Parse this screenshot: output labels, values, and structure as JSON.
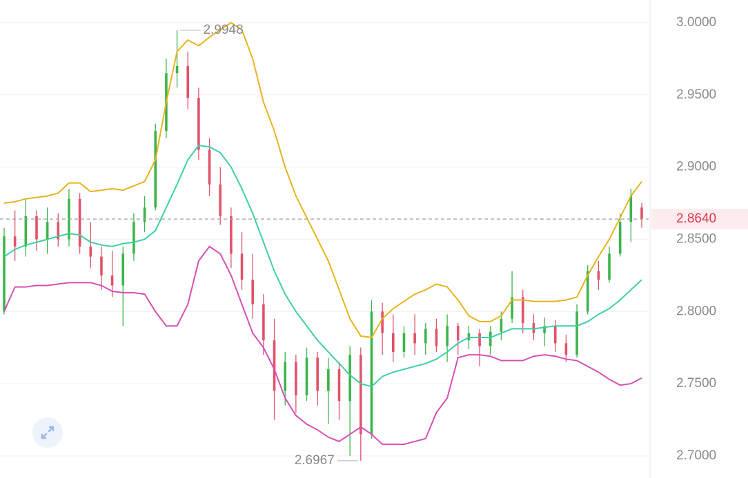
{
  "chart_data": {
    "type": "candlestick",
    "up_color": "#3cb54a",
    "down_color": "#e0536a",
    "open": [
      2.8,
      2.852,
      2.845,
      2.866,
      2.85,
      2.862,
      2.85,
      2.878,
      2.845,
      2.838,
      2.825,
      2.818,
      2.84,
      2.862,
      2.872,
      2.925,
      2.965,
      2.97,
      2.948,
      2.912,
      2.888,
      2.866,
      2.84,
      2.822,
      2.805,
      2.78,
      2.745,
      2.765,
      2.742,
      2.768,
      2.745,
      2.76,
      2.738,
      2.77,
      2.715,
      2.8,
      2.785,
      2.772,
      2.785,
      2.778,
      2.788,
      2.776,
      2.79,
      2.78,
      2.785,
      2.776,
      2.786,
      2.795,
      2.81,
      2.792,
      2.785,
      2.79,
      2.778,
      2.77,
      2.8,
      2.828,
      2.822,
      2.84,
      2.862,
      2.872
    ],
    "high": [
      2.858,
      2.87,
      2.878,
      2.87,
      2.872,
      2.868,
      2.885,
      2.882,
      2.862,
      2.845,
      2.842,
      2.845,
      2.868,
      2.88,
      2.93,
      2.975,
      2.9948,
      2.98,
      2.955,
      2.92,
      2.9,
      2.872,
      2.855,
      2.84,
      2.812,
      2.795,
      2.772,
      2.77,
      2.775,
      2.772,
      2.768,
      2.765,
      2.776,
      2.775,
      2.808,
      2.806,
      2.798,
      2.79,
      2.798,
      2.792,
      2.795,
      2.798,
      2.792,
      2.79,
      2.788,
      2.79,
      2.8,
      2.828,
      2.815,
      2.798,
      2.796,
      2.794,
      2.784,
      2.805,
      2.832,
      2.835,
      2.845,
      2.868,
      2.885,
      2.875
    ],
    "low": [
      2.798,
      2.835,
      2.838,
      2.842,
      2.84,
      2.845,
      2.845,
      2.84,
      2.83,
      2.815,
      2.81,
      2.79,
      2.835,
      2.855,
      2.87,
      2.92,
      2.955,
      2.94,
      2.905,
      2.88,
      2.86,
      2.83,
      2.815,
      2.795,
      2.77,
      2.725,
      2.735,
      2.73,
      2.738,
      2.735,
      2.722,
      2.725,
      2.7,
      2.6967,
      2.712,
      2.77,
      2.765,
      2.768,
      2.77,
      2.77,
      2.772,
      2.765,
      2.77,
      2.774,
      2.762,
      2.77,
      2.78,
      2.792,
      2.785,
      2.78,
      2.776,
      2.772,
      2.765,
      2.768,
      2.798,
      2.815,
      2.82,
      2.838,
      2.848,
      2.858
    ],
    "close": [
      2.852,
      2.845,
      2.866,
      2.85,
      2.862,
      2.85,
      2.878,
      2.845,
      2.838,
      2.825,
      2.818,
      2.84,
      2.862,
      2.872,
      2.925,
      2.965,
      2.97,
      2.948,
      2.912,
      2.888,
      2.866,
      2.84,
      2.822,
      2.805,
      2.78,
      2.745,
      2.765,
      2.742,
      2.768,
      2.745,
      2.76,
      2.738,
      2.77,
      2.715,
      2.8,
      2.785,
      2.772,
      2.785,
      2.778,
      2.788,
      2.776,
      2.79,
      2.78,
      2.785,
      2.776,
      2.786,
      2.795,
      2.81,
      2.792,
      2.785,
      2.79,
      2.778,
      2.77,
      2.8,
      2.828,
      2.822,
      2.84,
      2.862,
      2.88,
      2.864
    ],
    "series": [
      {
        "color": "#e9b31c",
        "values": [
          2.875,
          2.876,
          2.878,
          2.879,
          2.88,
          2.882,
          2.889,
          2.889,
          2.883,
          2.884,
          2.885,
          2.884,
          2.887,
          2.89,
          2.905,
          2.945,
          2.98,
          2.988,
          2.984,
          2.99,
          2.995,
          3.0,
          2.995,
          2.975,
          2.945,
          2.925,
          2.9,
          2.88,
          2.865,
          2.85,
          2.835,
          2.815,
          2.795,
          2.783,
          2.782,
          2.795,
          2.802,
          2.807,
          2.812,
          2.815,
          2.819,
          2.817,
          2.808,
          2.797,
          2.793,
          2.793,
          2.797,
          2.808,
          2.808,
          2.807,
          2.807,
          2.807,
          2.808,
          2.81,
          2.825,
          2.838,
          2.85,
          2.865,
          2.88,
          2.89
        ]
      },
      {
        "color": "#3ccfa6",
        "values": [
          2.838,
          2.843,
          2.846,
          2.848,
          2.85,
          2.852,
          2.854,
          2.853,
          2.848,
          2.846,
          2.845,
          2.847,
          2.848,
          2.85,
          2.856,
          2.872,
          2.888,
          2.905,
          2.915,
          2.914,
          2.91,
          2.9,
          2.885,
          2.868,
          2.848,
          2.828,
          2.812,
          2.8,
          2.79,
          2.78,
          2.772,
          2.764,
          2.756,
          2.75,
          2.748,
          2.755,
          2.758,
          2.76,
          2.762,
          2.764,
          2.767,
          2.772,
          2.778,
          2.782,
          2.782,
          2.782,
          2.785,
          2.788,
          2.788,
          2.788,
          2.789,
          2.79,
          2.79,
          2.79,
          2.793,
          2.798,
          2.802,
          2.808,
          2.815,
          2.822
        ]
      },
      {
        "color": "#d64fb5",
        "values": [
          2.8,
          2.817,
          2.817,
          2.818,
          2.818,
          2.819,
          2.82,
          2.82,
          2.82,
          2.818,
          2.814,
          2.813,
          2.813,
          2.812,
          2.8,
          2.79,
          2.79,
          2.805,
          2.835,
          2.845,
          2.84,
          2.825,
          2.805,
          2.785,
          2.775,
          2.76,
          2.74,
          2.728,
          2.722,
          2.718,
          2.713,
          2.71,
          2.715,
          2.72,
          2.715,
          2.708,
          2.708,
          2.708,
          2.71,
          2.712,
          2.73,
          2.74,
          2.768,
          2.77,
          2.77,
          2.769,
          2.766,
          2.766,
          2.766,
          2.769,
          2.77,
          2.769,
          2.767,
          2.766,
          2.762,
          2.758,
          2.753,
          2.749,
          2.75,
          2.754
        ]
      }
    ],
    "high_marker": 2.9948,
    "low_marker": 2.6967,
    "last_price": {
      "value": 2.864,
      "label": "2.8640"
    },
    "ylim": [
      2.6847,
      3.0157
    ],
    "yticks": [
      {
        "value": 2.7,
        "label": "2.7000"
      },
      {
        "value": 2.75,
        "label": "2.7500"
      },
      {
        "value": 2.8,
        "label": "2.8000"
      },
      {
        "value": 2.85,
        "label": "2.8500"
      },
      {
        "value": 2.9,
        "label": "2.9000"
      },
      {
        "value": 2.95,
        "label": "2.9500"
      },
      {
        "value": 3.0,
        "label": "3.0000"
      }
    ],
    "grid": true
  }
}
